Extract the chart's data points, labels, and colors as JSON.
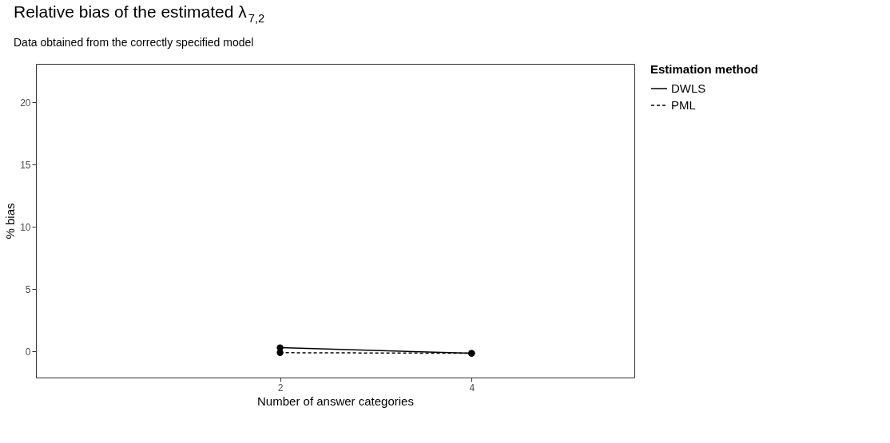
{
  "chart_data": {
    "type": "line",
    "title": "Relative bias of the estimated λ$_{7,2}$",
    "subtitle": "Data obtained from the correctly specified model",
    "xlabel": "Number of answer categories",
    "ylabel": "% bias",
    "legend_title": "Estimation method",
    "x": [
      2,
      4
    ],
    "series": [
      {
        "name": "DWLS",
        "color": "#000000",
        "line_style": "solid",
        "values": [
          0.3,
          -0.15
        ]
      },
      {
        "name": "PML",
        "color": "#000000",
        "line_style": "dashed",
        "values": [
          -0.1,
          -0.15
        ]
      }
    ],
    "xlim": [
      -0.55,
      5.7
    ],
    "xticks": [
      2,
      4
    ],
    "ylim": [
      -2.1,
      23.1
    ],
    "yticks": [
      0,
      5,
      10,
      15,
      20
    ],
    "grid": false,
    "legend": "right",
    "marker": "circle"
  }
}
